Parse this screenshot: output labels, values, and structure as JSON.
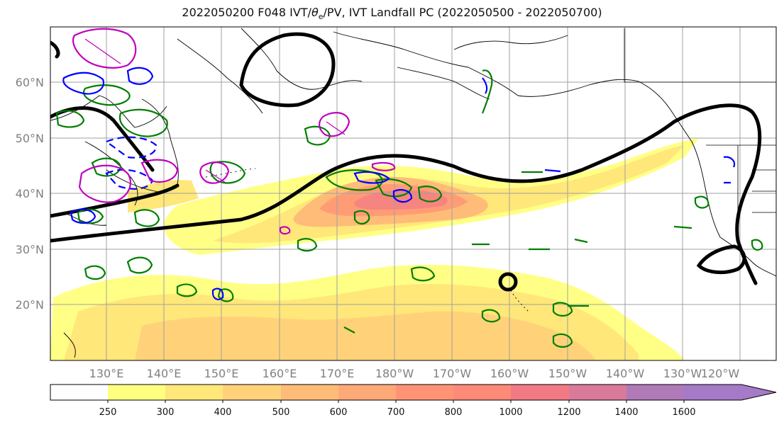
{
  "title": "2022050200 F048 IVT/θe/PV, IVT Landfall PC (2022050500 - 2022050700)",
  "title_parts": {
    "prefix": "2022050200 F048 IVT/",
    "theta": "θ",
    "theta_sub": "e",
    "suffix": "/PV, IVT Landfall PC (2022050500 - 2022050700)"
  },
  "map": {
    "lon_labels": [
      "130°E",
      "140°E",
      "150°E",
      "160°E",
      "170°E",
      "180°W",
      "170°W",
      "160°W",
      "150°W",
      "140°W",
      "130°W",
      "120°W"
    ],
    "lat_labels": [
      "60°N",
      "50°N",
      "40°N",
      "30°N",
      "20°N"
    ],
    "grid": true,
    "colors": {
      "pv_contour": "#c000c0",
      "theta_e_contour": "#0000ff",
      "vorticity_contour": "#007f00",
      "height_contour": "#000000"
    }
  },
  "colorbar": {
    "levels": [
      "250",
      "300",
      "400",
      "500",
      "600",
      "700",
      "800",
      "1000",
      "1200",
      "1400",
      "1600"
    ],
    "colors": [
      "#ffffff",
      "#ffff80",
      "#ffe77a",
      "#ffd27a",
      "#ffbc78",
      "#ffa878",
      "#ff9475",
      "#ff8a78",
      "#f27a85",
      "#d97a9a",
      "#b07ab8",
      "#a57ac6"
    ],
    "extend": "max"
  }
}
